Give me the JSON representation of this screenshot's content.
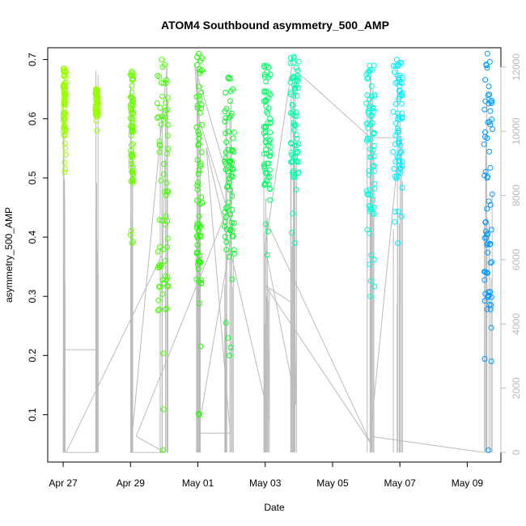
{
  "chart_data": {
    "type": "scatter",
    "title": "ATOM4 Southbound asymmetry_500_AMP",
    "xlabel": "Date",
    "ylabel": "asymmetry_500_AMP",
    "x_ticks": [
      "Apr 27",
      "Apr 29",
      "May 01",
      "May 03",
      "May 05",
      "May 07",
      "May 09"
    ],
    "y_ticks": [
      "0.1",
      "0.2",
      "0.3",
      "0.4",
      "0.5",
      "0.6",
      "0.7"
    ],
    "y2_ticks": [
      "0",
      "2000",
      "4000",
      "6000",
      "8000",
      "10000",
      "12000"
    ],
    "xlim": [
      "2015-04-26T13:00",
      "2015-05-10T00:00"
    ],
    "ylim": [
      0.02,
      0.72
    ],
    "y2lim": [
      -300,
      12600
    ],
    "grid": false,
    "series": [
      {
        "color": "#99ff00",
        "x_range": [
          "2015-04-27T00:00",
          "2015-04-27T02:00"
        ],
        "y_range": [
          0.51,
          0.685
        ]
      },
      {
        "color": "#99ff00",
        "x_range": [
          "2015-04-27T23:00",
          "2015-04-28T01:00"
        ],
        "y_range": [
          0.58,
          0.65
        ]
      },
      {
        "color": "#66ff00",
        "x_range": [
          "2015-04-29T00:00",
          "2015-04-29T02:00"
        ],
        "y_range": [
          0.39,
          0.68
        ]
      },
      {
        "color": "#44ff00",
        "x_range": [
          "2015-04-29T19:00",
          "2015-04-30T03:00"
        ],
        "y_range": [
          0.04,
          0.7
        ]
      },
      {
        "color": "#22ff00",
        "x_range": [
          "2015-04-30T23:00",
          "2015-05-01T03:00"
        ],
        "y_range": [
          0.1,
          0.71
        ]
      },
      {
        "color": "#00ff22",
        "x_range": [
          "2015-05-01T19:00",
          "2015-05-02T02:00"
        ],
        "y_range": [
          0.2,
          0.67
        ]
      },
      {
        "color": "#00ff66",
        "x_range": [
          "2015-05-02T23:00",
          "2015-05-03T04:00"
        ],
        "y_range": [
          0.37,
          0.69
        ]
      },
      {
        "color": "#00ffaa",
        "x_range": [
          "2015-05-03T18:00",
          "2015-05-04T00:00"
        ],
        "y_range": [
          0.39,
          0.705
        ]
      },
      {
        "color": "#00ffdd",
        "x_range": [
          "2015-05-06T00:00",
          "2015-05-06T06:00"
        ],
        "y_range": [
          0.3,
          0.69
        ]
      },
      {
        "color": "#00eeff",
        "x_range": [
          "2015-05-06T19:00",
          "2015-05-07T02:00"
        ],
        "y_range": [
          0.39,
          0.7
        ]
      },
      {
        "color": "#0099ff",
        "x_range": [
          "2015-05-09T12:00",
          "2015-05-09T18:00"
        ],
        "y_range": [
          0.04,
          0.71
        ]
      }
    ],
    "line_series": {
      "color": "#bbbbbb",
      "points": [
        [
          "2015-04-27T00:00",
          0
        ],
        [
          "2015-04-27T00:10",
          3200
        ],
        [
          "2015-04-27T23:30",
          3200
        ],
        [
          "2015-04-27T23:40",
          0
        ],
        [
          "2015-04-27T02:00",
          0
        ],
        [
          "2015-04-29T23:00",
          6200
        ],
        [
          "2015-04-30T02:00",
          12000
        ],
        [
          "2015-04-29T00:00",
          0
        ],
        [
          "2015-04-30T00:30",
          0
        ],
        [
          "2015-04-29T04:00",
          500
        ],
        [
          "2015-05-02T01:00",
          8000
        ],
        [
          "2015-04-30T22:00",
          12000
        ],
        [
          "2015-05-01T00:00",
          10500
        ],
        [
          "2015-05-02T01:00",
          7000
        ],
        [
          "2015-05-01T00:00",
          600
        ],
        [
          "2015-05-01T23:00",
          600
        ],
        [
          "2015-05-01T06:00",
          9500
        ],
        [
          "2015-05-03T03:00",
          1000
        ],
        [
          "2015-05-03T01:00",
          7200
        ],
        [
          "2015-05-06T03:00",
          300
        ],
        [
          "2015-05-03T00:00",
          5200
        ],
        [
          "2015-05-03T21:00",
          4600
        ],
        [
          "2015-05-03T22:00",
          1500
        ],
        [
          "2015-05-03T00:00",
          6400
        ],
        [
          "2015-05-03T19:00",
          12000
        ],
        [
          "2015-05-06T03:00",
          9800
        ],
        [
          "2015-05-07T00:00",
          9800
        ],
        [
          "2015-05-06T03:00",
          500
        ],
        [
          "2015-05-09T12:00",
          0
        ]
      ]
    },
    "marker": "open-circle"
  }
}
